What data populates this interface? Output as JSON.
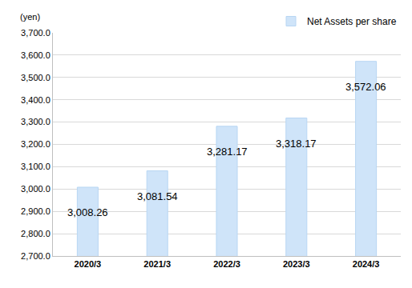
{
  "chart_data": {
    "type": "bar",
    "y_label": "(yen)",
    "categories": [
      "2020/3",
      "2021/3",
      "2022/3",
      "2023/3",
      "2024/3"
    ],
    "series": [
      {
        "name": "Net Assets per share",
        "color": "#cfe4f9",
        "values": [
          3008.26,
          3081.54,
          3281.17,
          3318.17,
          3572.06
        ],
        "value_labels": [
          "3,008.26",
          "3,081.54",
          "3,281.17",
          "3,318.17",
          "3,572.06"
        ]
      }
    ],
    "ylim": [
      2700,
      3700
    ],
    "yticks": [
      {
        "value": 2700,
        "label": "2,700.0"
      },
      {
        "value": 2800,
        "label": "2,800.0"
      },
      {
        "value": 2900,
        "label": "2,900.0"
      },
      {
        "value": 3000,
        "label": "3,000.0"
      },
      {
        "value": 3100,
        "label": "3,100.0"
      },
      {
        "value": 3200,
        "label": "3,200.0"
      },
      {
        "value": 3300,
        "label": "3,300.0"
      },
      {
        "value": 3400,
        "label": "3,400.0"
      },
      {
        "value": 3500,
        "label": "3,500.0"
      },
      {
        "value": 3600,
        "label": "3,600.0"
      },
      {
        "value": 3700,
        "label": "3,700.0"
      }
    ],
    "grid": true,
    "data_labels": true,
    "legend": "top right"
  }
}
